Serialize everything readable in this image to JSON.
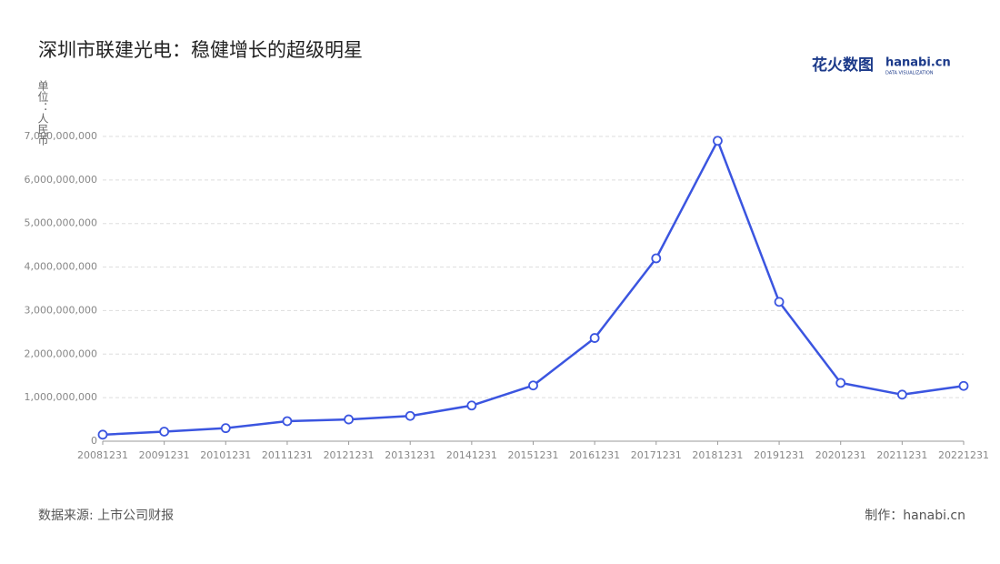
{
  "chart_data": {
    "type": "line",
    "title": "深圳市联建光电：稳健增长的超级明星",
    "y_label": "单位：人民币",
    "categories": [
      "20081231",
      "20091231",
      "20101231",
      "20111231",
      "20121231",
      "20131231",
      "20141231",
      "20151231",
      "20161231",
      "20171231",
      "20181231",
      "20191231",
      "20201231",
      "20211231",
      "20221231"
    ],
    "values": [
      150000000,
      220000000,
      300000000,
      460000000,
      500000000,
      580000000,
      820000000,
      1280000000,
      2370000000,
      4200000000,
      6900000000,
      3200000000,
      1340000000,
      1070000000,
      1270000000
    ],
    "color": "#3b55e0",
    "ylim": [
      0,
      7000000000
    ],
    "yticks": [
      0,
      {
        "value": 1000000000,
        "label": "1,000,000,000"
      },
      {
        "value": 2000000000,
        "label": "2,000,000,000"
      },
      {
        "value": 3000000000,
        "label": "3,000,000,000"
      },
      {
        "value": 4000000000,
        "label": "4,000,000,000"
      },
      {
        "value": 5000000000,
        "label": "5,000,000,000"
      },
      {
        "value": 6000000000,
        "label": "6,000,000,000"
      },
      {
        "value": 7000000000,
        "label": "7,000,000,000"
      }
    ],
    "grid": true
  },
  "logo": {
    "brand": "花火数图",
    "site": "hanabi.cn",
    "tagline": "DATA VISUALIZATION"
  },
  "footer": {
    "source": "数据来源: 上市公司财报",
    "credit": "制作：hanabi.cn"
  }
}
